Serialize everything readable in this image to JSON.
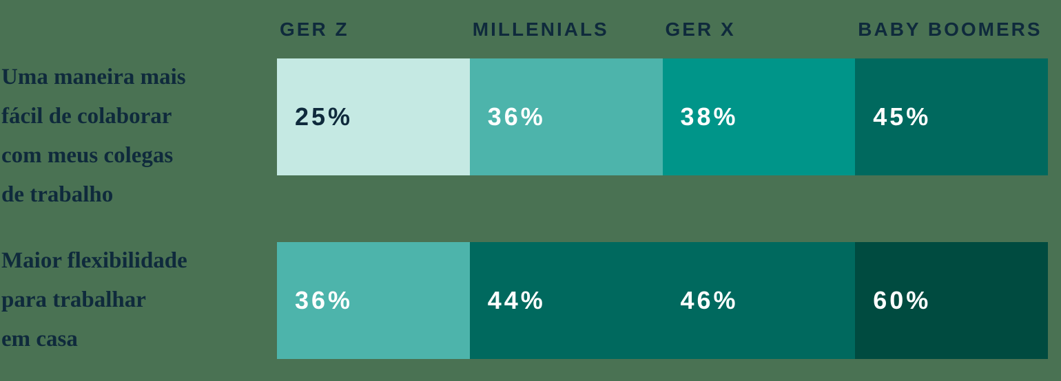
{
  "background_color": "#4a7253",
  "heading_color": "#0f2a3c",
  "columns": [
    "GER Z",
    "MILLENIALS",
    "GER X",
    "BABY BOOMERS"
  ],
  "rows": [
    {
      "label": "Uma maneira mais fácil de colaborar com meus colegas de trabalho",
      "label_lines": [
        "Uma maneira mais",
        "fácil de colaborar",
        "com meus colegas",
        "de trabalho"
      ],
      "cells": [
        {
          "value": "25%",
          "bg": "#c5e9e3",
          "text_color": "#0f2a3c"
        },
        {
          "value": "36%",
          "bg": "#4db4ab",
          "text_color": "#ffffff"
        },
        {
          "value": "38%",
          "bg": "#009589",
          "text_color": "#ffffff"
        },
        {
          "value": "45%",
          "bg": "#00695e",
          "text_color": "#ffffff"
        }
      ]
    },
    {
      "label": "Maior flexibilidade para trabalhar em casa",
      "label_lines": [
        "Maior flexibilidade",
        "para trabalhar",
        "em casa"
      ],
      "cells": [
        {
          "value": "36%",
          "bg": "#4db4ab",
          "text_color": "#ffffff"
        },
        {
          "value": "44%",
          "bg": "#00695e",
          "text_color": "#ffffff"
        },
        {
          "value": "46%",
          "bg": "#00695e",
          "text_color": "#ffffff"
        },
        {
          "value": "60%",
          "bg": "#004b40",
          "text_color": "#ffffff"
        }
      ]
    }
  ],
  "chart_data": {
    "type": "heatmap",
    "title": "",
    "categories": [
      "GER Z",
      "MILLENIALS",
      "GER X",
      "BABY BOOMERS"
    ],
    "row_labels": [
      "Uma maneira mais fácil de colaborar com meus colegas de trabalho",
      "Maior flexibilidade para trabalhar em casa"
    ],
    "series": [
      {
        "name": "Uma maneira mais fácil de colaborar com meus colegas de trabalho",
        "values": [
          25,
          36,
          38,
          45
        ]
      },
      {
        "name": "Maior flexibilidade para trabalhar em casa",
        "values": [
          36,
          44,
          46,
          60
        ]
      }
    ],
    "unit": "%",
    "value_range": [
      0,
      100
    ],
    "legend_position": "none",
    "grid": false,
    "color_scale": [
      "#c5e9e3",
      "#4db4ab",
      "#009589",
      "#00695e",
      "#004b40"
    ]
  }
}
